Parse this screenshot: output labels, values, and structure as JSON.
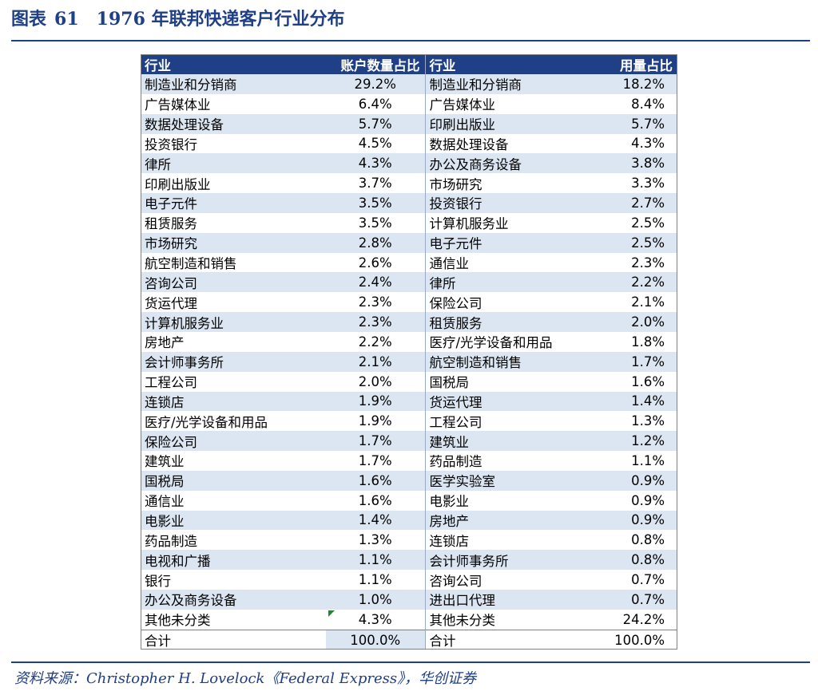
{
  "figure": {
    "label": "图表",
    "number": "61",
    "title": "1976 年联邦快递客户行业分布"
  },
  "table": {
    "headers": {
      "industry_a": "行业",
      "account_share": "账户数量占比",
      "industry_b": "行业",
      "usage_share": "用量占比"
    },
    "rows": [
      [
        "制造业和分销商",
        "29.2%",
        "制造业和分销商",
        "18.2%"
      ],
      [
        "广告媒体业",
        "6.4%",
        "广告媒体业",
        "8.4%"
      ],
      [
        "数据处理设备",
        "5.7%",
        "印刷出版业",
        "5.7%"
      ],
      [
        "投资银行",
        "4.5%",
        "数据处理设备",
        "4.3%"
      ],
      [
        "律所",
        "4.3%",
        "办公及商务设备",
        "3.8%"
      ],
      [
        "印刷出版业",
        "3.7%",
        "市场研究",
        "3.3%"
      ],
      [
        "电子元件",
        "3.5%",
        "投资银行",
        "2.7%"
      ],
      [
        "租赁服务",
        "3.5%",
        "计算机服务业",
        "2.5%"
      ],
      [
        "市场研究",
        "2.8%",
        "电子元件",
        "2.5%"
      ],
      [
        "航空制造和销售",
        "2.6%",
        "通信业",
        "2.3%"
      ],
      [
        "咨询公司",
        "2.4%",
        "律所",
        "2.2%"
      ],
      [
        "货运代理",
        "2.3%",
        "保险公司",
        "2.1%"
      ],
      [
        "计算机服务业",
        "2.3%",
        "租赁服务",
        "2.0%"
      ],
      [
        "房地产",
        "2.2%",
        "医疗/光学设备和用品",
        "1.8%"
      ],
      [
        "会计师事务所",
        "2.1%",
        "航空制造和销售",
        "1.7%"
      ],
      [
        "工程公司",
        "2.0%",
        "国税局",
        "1.6%"
      ],
      [
        "连锁店",
        "1.9%",
        "货运代理",
        "1.4%"
      ],
      [
        "医疗/光学设备和用品",
        "1.9%",
        "工程公司",
        "1.3%"
      ],
      [
        "保险公司",
        "1.7%",
        "建筑业",
        "1.2%"
      ],
      [
        "建筑业",
        "1.7%",
        "药品制造",
        "1.1%"
      ],
      [
        "国税局",
        "1.6%",
        "医学实验室",
        "0.9%"
      ],
      [
        "通信业",
        "1.6%",
        "电影业",
        "0.9%"
      ],
      [
        "电影业",
        "1.4%",
        "房地产",
        "0.9%"
      ],
      [
        "药品制造",
        "1.3%",
        "连锁店",
        "0.8%"
      ],
      [
        "电视和广播",
        "1.1%",
        "会计师事务所",
        "0.8%"
      ],
      [
        "银行",
        "1.1%",
        "咨询公司",
        "0.7%"
      ],
      [
        "办公及商务设备",
        "1.0%",
        "进出口代理",
        "0.7%"
      ],
      [
        "其他未分类",
        "4.3%",
        "其他未分类",
        "24.2%"
      ]
    ],
    "total": [
      "合计",
      "100.0%",
      "合计",
      "100.0%"
    ]
  },
  "source": "资料来源：Christopher H. Lovelock《Federal Express》，华创证券",
  "colors": {
    "brand_blue": "#1f3f86",
    "stripe": "#dce6f2",
    "marker_green": "#1e8a2e"
  }
}
